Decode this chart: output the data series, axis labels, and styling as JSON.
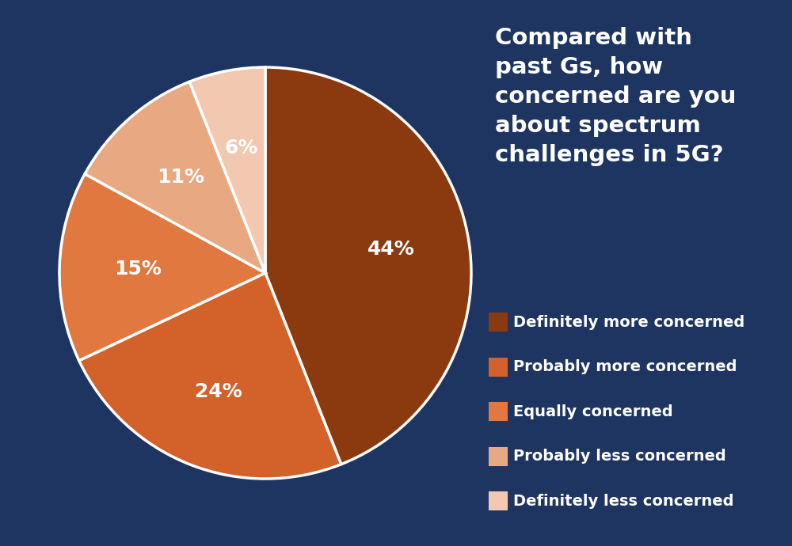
{
  "title": "Compared with\npast Gs, how\nconcerned are you\nabout spectrum\nchallenges in 5G?",
  "slices": [
    44,
    24,
    15,
    11,
    6
  ],
  "labels": [
    "44%",
    "24%",
    "15%",
    "11%",
    "6%"
  ],
  "colors": [
    "#8B3A10",
    "#D2622A",
    "#E07840",
    "#E8A882",
    "#F2C8B0"
  ],
  "legend_labels": [
    "Definitely more concerned",
    "Probably more concerned",
    "Equally concerned",
    "Probably less concerned",
    "Definitely less concerned"
  ],
  "background_color": "#1E3461",
  "text_color": "#FFFFFF",
  "title_fontsize": 21,
  "label_fontsize": 18,
  "legend_fontsize": 14
}
